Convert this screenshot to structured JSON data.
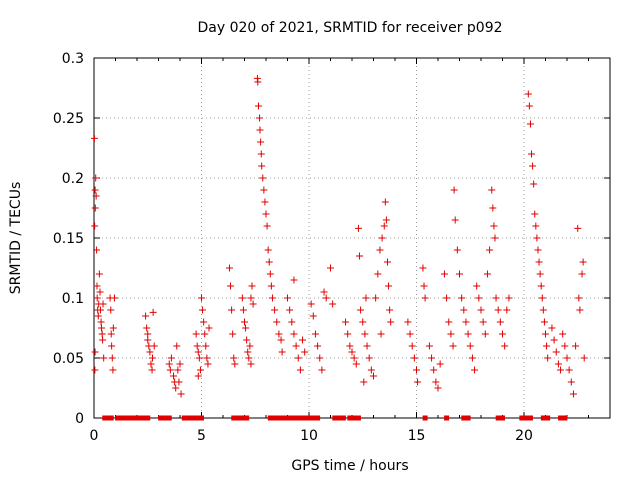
{
  "chart_data": {
    "type": "scatter",
    "title": "Day 020 of 2021, SRMTID for receiver p092",
    "xlabel": "GPS time / hours",
    "ylabel": "SRMTID / TECUs",
    "xlim": [
      0,
      24
    ],
    "ylim": [
      0,
      0.3
    ],
    "xticks": [
      0,
      5,
      10,
      15,
      20
    ],
    "xtick_labels": [
      "0",
      "5",
      "10",
      "15",
      "20"
    ],
    "yticks": [
      0,
      0.05,
      0.1,
      0.15,
      0.2,
      0.25,
      0.3
    ],
    "ytick_labels": [
      "0",
      "0.05",
      "0.1",
      "0.15",
      "0.2",
      "0.25",
      "0.3"
    ],
    "grid": true,
    "legend": "none",
    "series": [
      {
        "name": "SRMTID",
        "marker": "plus",
        "color": "#e00000",
        "points": [
          [
            0.02,
            0.233
          ],
          [
            0.03,
            0.16
          ],
          [
            0.05,
            0.19
          ],
          [
            0.06,
            0.175
          ],
          [
            0.08,
            0.2
          ],
          [
            0.1,
            0.185
          ],
          [
            0.12,
            0.14
          ],
          [
            0.14,
            0.11
          ],
          [
            0.15,
            0.1
          ],
          [
            0.17,
            0.09
          ],
          [
            0.2,
            0.085
          ],
          [
            0.22,
            0.095
          ],
          [
            0.05,
            0.055
          ],
          [
            0.04,
            0.04
          ],
          [
            0.25,
            0.12
          ],
          [
            0.28,
            0.105
          ],
          [
            0.3,
            0.09
          ],
          [
            0.33,
            0.08
          ],
          [
            0.35,
            0.075
          ],
          [
            0.38,
            0.07
          ],
          [
            0.4,
            0.065
          ],
          [
            0.42,
            0.095
          ],
          [
            0.45,
            0.05
          ],
          [
            0.75,
            0.1
          ],
          [
            0.78,
            0.09
          ],
          [
            0.8,
            0.07
          ],
          [
            0.82,
            0.06
          ],
          [
            0.85,
            0.05
          ],
          [
            0.88,
            0.04
          ],
          [
            0.9,
            0.075
          ],
          [
            0.95,
            0.1
          ],
          [
            2.4,
            0.085
          ],
          [
            2.45,
            0.075
          ],
          [
            2.5,
            0.07
          ],
          [
            2.55,
            0.06
          ],
          [
            2.6,
            0.055
          ],
          [
            2.65,
            0.045
          ],
          [
            2.7,
            0.04
          ],
          [
            2.72,
            0.05
          ],
          [
            2.5,
            0.065
          ],
          [
            2.75,
            0.088
          ],
          [
            2.8,
            0.06
          ],
          [
            3.5,
            0.045
          ],
          [
            3.55,
            0.04
          ],
          [
            3.6,
            0.05
          ],
          [
            3.7,
            0.035
          ],
          [
            3.75,
            0.03
          ],
          [
            3.8,
            0.025
          ],
          [
            3.85,
            0.06
          ],
          [
            3.9,
            0.04
          ],
          [
            3.95,
            0.03
          ],
          [
            4.0,
            0.045
          ],
          [
            4.05,
            0.02
          ],
          [
            4.75,
            0.07
          ],
          [
            4.8,
            0.06
          ],
          [
            4.85,
            0.055
          ],
          [
            4.9,
            0.05
          ],
          [
            4.95,
            0.04
          ],
          [
            5.0,
            0.1
          ],
          [
            5.05,
            0.09
          ],
          [
            5.1,
            0.08
          ],
          [
            5.15,
            0.07
          ],
          [
            5.2,
            0.06
          ],
          [
            5.25,
            0.05
          ],
          [
            5.3,
            0.045
          ],
          [
            4.85,
            0.035
          ],
          [
            5.35,
            0.075
          ],
          [
            6.3,
            0.125
          ],
          [
            6.35,
            0.11
          ],
          [
            6.4,
            0.09
          ],
          [
            6.45,
            0.07
          ],
          [
            6.5,
            0.05
          ],
          [
            6.55,
            0.045
          ],
          [
            6.9,
            0.1
          ],
          [
            6.95,
            0.09
          ],
          [
            7.0,
            0.08
          ],
          [
            7.05,
            0.075
          ],
          [
            7.1,
            0.065
          ],
          [
            7.15,
            0.055
          ],
          [
            7.2,
            0.05
          ],
          [
            7.25,
            0.06
          ],
          [
            7.3,
            0.1
          ],
          [
            7.35,
            0.11
          ],
          [
            7.4,
            0.095
          ],
          [
            7.3,
            0.045
          ],
          [
            7.6,
            0.283
          ],
          [
            7.62,
            0.28
          ],
          [
            7.65,
            0.26
          ],
          [
            7.7,
            0.25
          ],
          [
            7.72,
            0.24
          ],
          [
            7.75,
            0.23
          ],
          [
            7.78,
            0.22
          ],
          [
            7.8,
            0.21
          ],
          [
            7.85,
            0.2
          ],
          [
            7.9,
            0.19
          ],
          [
            7.95,
            0.18
          ],
          [
            8.0,
            0.17
          ],
          [
            8.05,
            0.16
          ],
          [
            8.1,
            0.14
          ],
          [
            8.15,
            0.13
          ],
          [
            8.2,
            0.12
          ],
          [
            8.25,
            0.11
          ],
          [
            8.3,
            0.1
          ],
          [
            8.4,
            0.09
          ],
          [
            8.5,
            0.08
          ],
          [
            8.6,
            0.07
          ],
          [
            8.7,
            0.065
          ],
          [
            8.75,
            0.055
          ],
          [
            9.0,
            0.1
          ],
          [
            9.1,
            0.09
          ],
          [
            9.2,
            0.08
          ],
          [
            9.3,
            0.07
          ],
          [
            9.4,
            0.06
          ],
          [
            9.5,
            0.05
          ],
          [
            9.6,
            0.04
          ],
          [
            9.3,
            0.115
          ],
          [
            9.7,
            0.065
          ],
          [
            9.8,
            0.055
          ],
          [
            10.1,
            0.095
          ],
          [
            10.2,
            0.085
          ],
          [
            10.3,
            0.07
          ],
          [
            10.4,
            0.06
          ],
          [
            10.5,
            0.05
          ],
          [
            10.6,
            0.04
          ],
          [
            10.7,
            0.105
          ],
          [
            10.8,
            0.1
          ],
          [
            11.0,
            0.125
          ],
          [
            11.1,
            0.095
          ],
          [
            11.7,
            0.08
          ],
          [
            11.8,
            0.07
          ],
          [
            11.9,
            0.06
          ],
          [
            12.0,
            0.055
          ],
          [
            12.1,
            0.05
          ],
          [
            12.2,
            0.045
          ],
          [
            12.3,
            0.158
          ],
          [
            12.35,
            0.135
          ],
          [
            12.4,
            0.09
          ],
          [
            12.5,
            0.08
          ],
          [
            12.6,
            0.07
          ],
          [
            12.7,
            0.06
          ],
          [
            12.8,
            0.05
          ],
          [
            12.9,
            0.04
          ],
          [
            13.0,
            0.035
          ],
          [
            12.55,
            0.03
          ],
          [
            12.65,
            0.1
          ],
          [
            13.1,
            0.1
          ],
          [
            13.2,
            0.12
          ],
          [
            13.3,
            0.14
          ],
          [
            13.4,
            0.15
          ],
          [
            13.5,
            0.16
          ],
          [
            13.55,
            0.18
          ],
          [
            13.6,
            0.165
          ],
          [
            13.65,
            0.13
          ],
          [
            13.7,
            0.11
          ],
          [
            13.75,
            0.09
          ],
          [
            13.8,
            0.08
          ],
          [
            13.35,
            0.07
          ],
          [
            14.6,
            0.08
          ],
          [
            14.7,
            0.07
          ],
          [
            14.8,
            0.06
          ],
          [
            14.9,
            0.05
          ],
          [
            15.0,
            0.04
          ],
          [
            15.05,
            0.03
          ],
          [
            15.3,
            0.125
          ],
          [
            15.35,
            0.11
          ],
          [
            15.4,
            0.1
          ],
          [
            15.6,
            0.06
          ],
          [
            15.7,
            0.05
          ],
          [
            15.8,
            0.04
          ],
          [
            15.9,
            0.03
          ],
          [
            16.0,
            0.025
          ],
          [
            16.1,
            0.045
          ],
          [
            16.3,
            0.12
          ],
          [
            16.4,
            0.1
          ],
          [
            16.5,
            0.08
          ],
          [
            16.6,
            0.07
          ],
          [
            16.7,
            0.06
          ],
          [
            16.75,
            0.19
          ],
          [
            16.8,
            0.165
          ],
          [
            16.9,
            0.14
          ],
          [
            17.0,
            0.12
          ],
          [
            17.1,
            0.1
          ],
          [
            17.2,
            0.09
          ],
          [
            17.3,
            0.08
          ],
          [
            17.4,
            0.07
          ],
          [
            17.5,
            0.06
          ],
          [
            17.6,
            0.05
          ],
          [
            17.7,
            0.04
          ],
          [
            17.8,
            0.11
          ],
          [
            17.9,
            0.1
          ],
          [
            18.0,
            0.09
          ],
          [
            18.1,
            0.08
          ],
          [
            18.2,
            0.07
          ],
          [
            18.3,
            0.12
          ],
          [
            18.4,
            0.14
          ],
          [
            18.5,
            0.19
          ],
          [
            18.55,
            0.175
          ],
          [
            18.6,
            0.16
          ],
          [
            18.65,
            0.15
          ],
          [
            18.7,
            0.1
          ],
          [
            18.8,
            0.09
          ],
          [
            18.9,
            0.08
          ],
          [
            19.0,
            0.07
          ],
          [
            19.1,
            0.06
          ],
          [
            19.2,
            0.09
          ],
          [
            19.3,
            0.1
          ],
          [
            20.2,
            0.27
          ],
          [
            20.25,
            0.26
          ],
          [
            20.3,
            0.245
          ],
          [
            20.35,
            0.22
          ],
          [
            20.4,
            0.21
          ],
          [
            20.45,
            0.195
          ],
          [
            20.5,
            0.17
          ],
          [
            20.55,
            0.16
          ],
          [
            20.6,
            0.15
          ],
          [
            20.65,
            0.14
          ],
          [
            20.7,
            0.13
          ],
          [
            20.75,
            0.12
          ],
          [
            20.8,
            0.11
          ],
          [
            20.85,
            0.1
          ],
          [
            20.9,
            0.09
          ],
          [
            20.95,
            0.08
          ],
          [
            21.0,
            0.07
          ],
          [
            21.05,
            0.06
          ],
          [
            21.1,
            0.05
          ],
          [
            21.3,
            0.075
          ],
          [
            21.4,
            0.065
          ],
          [
            21.5,
            0.055
          ],
          [
            21.6,
            0.045
          ],
          [
            21.7,
            0.04
          ],
          [
            21.8,
            0.07
          ],
          [
            21.9,
            0.06
          ],
          [
            22.0,
            0.05
          ],
          [
            22.1,
            0.04
          ],
          [
            22.2,
            0.03
          ],
          [
            22.3,
            0.02
          ],
          [
            22.4,
            0.06
          ],
          [
            22.5,
            0.158
          ],
          [
            22.55,
            0.1
          ],
          [
            22.6,
            0.09
          ],
          [
            22.7,
            0.12
          ],
          [
            22.75,
            0.13
          ],
          [
            22.8,
            0.05
          ]
        ],
        "zero_points_hours": [
          0.5,
          0.6,
          0.7,
          0.8,
          1.1,
          1.3,
          1.5,
          1.7,
          1.9,
          2.1,
          2.3,
          2.5,
          3.1,
          3.3,
          3.5,
          4.2,
          4.4,
          4.6,
          4.8,
          5.0,
          6.5,
          6.7,
          6.9,
          7.1,
          8.2,
          8.4,
          8.6,
          8.8,
          9.0,
          9.2,
          9.4,
          9.6,
          9.8,
          10.0,
          10.2,
          10.4,
          11.2,
          11.4,
          11.6,
          11.9,
          12.1,
          12.3,
          15.4,
          16.4,
          17.2,
          17.4,
          18.8,
          19.0,
          19.9,
          20.1,
          20.3,
          20.9,
          21.1,
          21.7,
          21.9
        ]
      }
    ]
  }
}
